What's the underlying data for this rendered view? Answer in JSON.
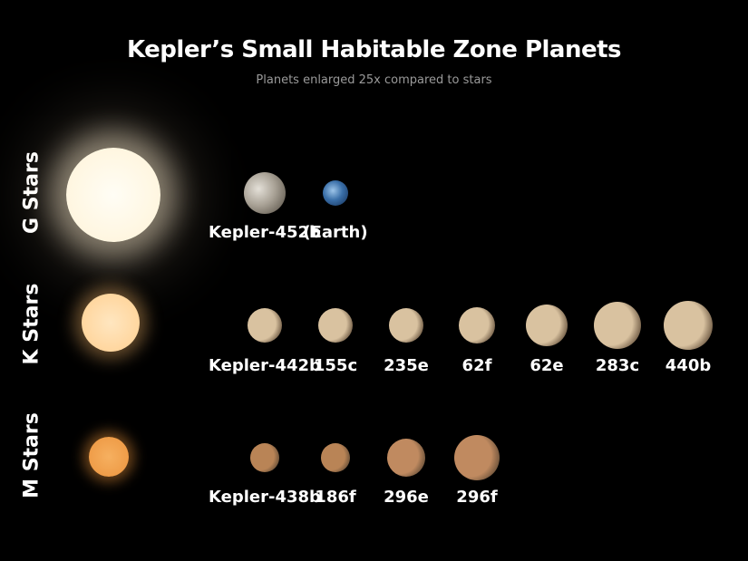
{
  "title": "Kepler’s Small Habitable Zone Planets",
  "subtitle": "Planets enlarged 25x compared to stars",
  "rows": [
    {
      "label": "G Stars",
      "star_color": "#fff6e0",
      "planets": [
        {
          "name": "Kepler-452b",
          "color": "#b9b4a8"
        },
        {
          "name": "(Earth)",
          "color": "#3a6fa8"
        }
      ]
    },
    {
      "label": "K Stars",
      "star_color": "#ffd8a0",
      "planets": [
        {
          "name": "Kepler-442b",
          "color": "#d9c2a0"
        },
        {
          "name": "155c",
          "color": "#d9c2a0"
        },
        {
          "name": "235e",
          "color": "#d9c2a0"
        },
        {
          "name": "62f",
          "color": "#d9c2a0"
        },
        {
          "name": "62e",
          "color": "#d9c2a0"
        },
        {
          "name": "283c",
          "color": "#d9c2a0"
        },
        {
          "name": "440b",
          "color": "#d9c2a0"
        }
      ]
    },
    {
      "label": "M Stars",
      "star_color": "#f0a050",
      "planets": [
        {
          "name": "Kepler-438b",
          "color": "#b98456"
        },
        {
          "name": "186f",
          "color": "#b98456"
        },
        {
          "name": "296e",
          "color": "#c08a60"
        },
        {
          "name": "296f",
          "color": "#c08a60"
        }
      ]
    }
  ]
}
